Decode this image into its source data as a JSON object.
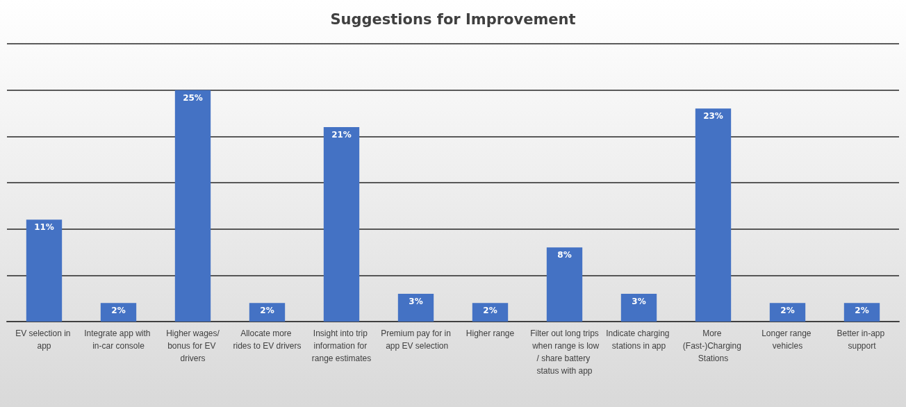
{
  "chart_data": {
    "type": "bar",
    "title": "Suggestions for Improvement",
    "categories": [
      "EV selection in app",
      "Integrate app with in-car console",
      "Higher wages/bonus for EV drivers",
      "Allocate more rides to EV drivers",
      "Insight into trip information for range estimates",
      "Premium pay for in app EV selection",
      "Higher range",
      "Filter out long trips when range is low/ share battery status with app",
      "Indicate charging stations in app",
      "More (Fast-)Charging Stations",
      "Longer range vehicles",
      "Better in-app support"
    ],
    "values": [
      11,
      2,
      25,
      2,
      21,
      3,
      2,
      8,
      3,
      23,
      2,
      2
    ],
    "value_labels": [
      "11%",
      "2%",
      "25%",
      "2%",
      "21%",
      "3%",
      "2%",
      "8%",
      "3%",
      "23%",
      "2%",
      "2%"
    ],
    "color": "#4472c4",
    "ylim": [
      0,
      30
    ],
    "yticks": [
      {
        "value": 0,
        "label": null
      },
      {
        "value": 5,
        "label": null
      },
      {
        "value": 10,
        "label": null
      },
      {
        "value": 15,
        "label": null
      },
      {
        "value": 20,
        "label": null
      },
      {
        "value": 25,
        "label": null
      },
      {
        "value": 30,
        "label": null
      }
    ],
    "tick_labels": "x",
    "grid": "y"
  }
}
